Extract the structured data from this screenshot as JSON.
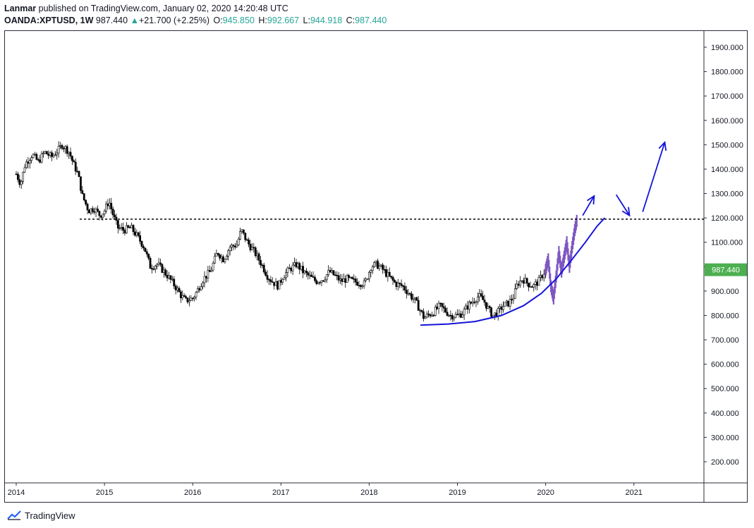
{
  "header": {
    "publisher_line": "Lanmar published on TradingView.com, January 02, 2020 14:20:48 UTC",
    "author": "Lanmar",
    "publisher_suffix": " published on TradingView.com, January 02, 2020 14:20:48 UTC",
    "symbol": "OANDA:XPTUSD, 1W",
    "last": "987.440",
    "change_arrow": "▲",
    "change": "+21.700 (+2.25%)",
    "o_label": "O:",
    "o_value": "945.850",
    "h_label": "H:",
    "h_value": "992.667",
    "l_label": "L:",
    "l_value": "944.918",
    "c_label": "C:",
    "c_value": "987.440"
  },
  "footer": {
    "brand": "TradingView",
    "logo_icon": "tradingview-logo-icon"
  },
  "colors": {
    "up": "#26a69a",
    "candle_up_fill": "#ffffff",
    "candle_down_fill": "#000000",
    "candle_wick": "#000000",
    "projection": "#7e57c2",
    "drawing": "#1414d9",
    "price_badge": "#4caf50",
    "resistance": "#000000"
  },
  "chart_data": {
    "type": "candlestick",
    "title": "OANDA:XPTUSD, 1W",
    "ylim": [
      110,
      1975
    ],
    "xlim": [
      2013.95,
      2021.8
    ],
    "y_ticks": [
      1900,
      1800,
      1700,
      1600,
      1500,
      1400,
      1300,
      1200,
      1100,
      1000,
      900,
      800,
      700,
      600,
      500,
      400,
      300,
      200
    ],
    "y_tick_labels": [
      "1900.000",
      "1800.000",
      "1700.000",
      "1600.000",
      "1500.000",
      "1400.000",
      "1300.000",
      "1200.000",
      "1100.000",
      "1000.000",
      "900.000",
      "800.000",
      "700.000",
      "600.000",
      "500.000",
      "400.000",
      "300.000",
      "200.000"
    ],
    "x_ticks": [
      2014,
      2015,
      2016,
      2017,
      2018,
      2019,
      2020,
      2021
    ],
    "x_tick_labels": [
      "2014",
      "2015",
      "2016",
      "2017",
      "2018",
      "2019",
      "2020",
      "2021"
    ],
    "last_price": 987.44,
    "last_price_label": "987.440",
    "price_path": [
      [
        2014.0,
        1380
      ],
      [
        2014.05,
        1340
      ],
      [
        2014.1,
        1420
      ],
      [
        2014.18,
        1460
      ],
      [
        2014.25,
        1430
      ],
      [
        2014.32,
        1470
      ],
      [
        2014.4,
        1450
      ],
      [
        2014.48,
        1480
      ],
      [
        2014.52,
        1500
      ],
      [
        2014.6,
        1470
      ],
      [
        2014.65,
        1420
      ],
      [
        2014.7,
        1380
      ],
      [
        2014.75,
        1290
      ],
      [
        2014.82,
        1230
      ],
      [
        2014.88,
        1240
      ],
      [
        2014.95,
        1210
      ],
      [
        2015.0,
        1230
      ],
      [
        2015.05,
        1270
      ],
      [
        2015.1,
        1210
      ],
      [
        2015.15,
        1160
      ],
      [
        2015.22,
        1150
      ],
      [
        2015.3,
        1160
      ],
      [
        2015.38,
        1120
      ],
      [
        2015.45,
        1080
      ],
      [
        2015.52,
        1000
      ],
      [
        2015.6,
        1010
      ],
      [
        2015.65,
        990
      ],
      [
        2015.72,
        960
      ],
      [
        2015.8,
        920
      ],
      [
        2015.87,
        880
      ],
      [
        2015.92,
        860
      ],
      [
        2016.0,
        870
      ],
      [
        2016.05,
        900
      ],
      [
        2016.12,
        950
      ],
      [
        2016.2,
        980
      ],
      [
        2016.28,
        1060
      ],
      [
        2016.35,
        1030
      ],
      [
        2016.42,
        1080
      ],
      [
        2016.5,
        1090
      ],
      [
        2016.55,
        1150
      ],
      [
        2016.62,
        1100
      ],
      [
        2016.7,
        1060
      ],
      [
        2016.78,
        1010
      ],
      [
        2016.85,
        960
      ],
      [
        2016.9,
        940
      ],
      [
        2016.97,
        920
      ],
      [
        2017.02,
        960
      ],
      [
        2017.1,
        990
      ],
      [
        2017.18,
        1010
      ],
      [
        2017.25,
        980
      ],
      [
        2017.32,
        960
      ],
      [
        2017.4,
        940
      ],
      [
        2017.48,
        950
      ],
      [
        2017.55,
        980
      ],
      [
        2017.62,
        960
      ],
      [
        2017.68,
        940
      ],
      [
        2017.75,
        950
      ],
      [
        2017.82,
        940
      ],
      [
        2017.88,
        935
      ],
      [
        2017.95,
        930
      ],
      [
        2018.02,
        1000
      ],
      [
        2018.08,
        1010
      ],
      [
        2018.15,
        990
      ],
      [
        2018.22,
        960
      ],
      [
        2018.3,
        930
      ],
      [
        2018.38,
        920
      ],
      [
        2018.45,
        890
      ],
      [
        2018.52,
        860
      ],
      [
        2018.58,
        820
      ],
      [
        2018.62,
        790
      ],
      [
        2018.66,
        800
      ],
      [
        2018.72,
        810
      ],
      [
        2018.8,
        840
      ],
      [
        2018.86,
        820
      ],
      [
        2018.92,
        800
      ],
      [
        2019.0,
        800
      ],
      [
        2019.06,
        810
      ],
      [
        2019.12,
        840
      ],
      [
        2019.18,
        860
      ],
      [
        2019.24,
        880
      ],
      [
        2019.3,
        860
      ],
      [
        2019.36,
        820
      ],
      [
        2019.4,
        800
      ],
      [
        2019.45,
        810
      ],
      [
        2019.52,
        840
      ],
      [
        2019.58,
        850
      ],
      [
        2019.64,
        880
      ],
      [
        2019.68,
        930
      ],
      [
        2019.74,
        950
      ],
      [
        2019.8,
        930
      ],
      [
        2019.86,
        920
      ],
      [
        2019.92,
        940
      ],
      [
        2019.97,
        970
      ],
      [
        2020.0,
        987
      ]
    ],
    "projection_path": [
      [
        2020.0,
        987
      ],
      [
        2020.03,
        1030
      ],
      [
        2020.06,
        920
      ],
      [
        2020.09,
        870
      ],
      [
        2020.12,
        960
      ],
      [
        2020.15,
        1060
      ],
      [
        2020.18,
        980
      ],
      [
        2020.21,
        1040
      ],
      [
        2020.24,
        1100
      ],
      [
        2020.27,
        1000
      ],
      [
        2020.3,
        1080
      ],
      [
        2020.33,
        1150
      ],
      [
        2020.36,
        1200
      ]
    ],
    "resistance_level": 1195,
    "resistance_x_range": [
      2014.72,
      2021.75
    ],
    "support_curve": [
      [
        2018.58,
        760
      ],
      [
        2018.9,
        765
      ],
      [
        2019.2,
        775
      ],
      [
        2019.5,
        800
      ],
      [
        2019.75,
        840
      ],
      [
        2019.95,
        890
      ],
      [
        2020.12,
        950
      ],
      [
        2020.3,
        1030
      ],
      [
        2020.45,
        1100
      ],
      [
        2020.58,
        1165
      ],
      [
        2020.67,
        1200
      ]
    ],
    "arrows": [
      {
        "from": [
          2020.42,
          1210
        ],
        "to": [
          2020.55,
          1290
        ]
      },
      {
        "from": [
          2020.8,
          1295
        ],
        "to": [
          2020.95,
          1210
        ]
      },
      {
        "from": [
          2021.1,
          1225
        ],
        "to": [
          2021.35,
          1510
        ]
      }
    ]
  }
}
